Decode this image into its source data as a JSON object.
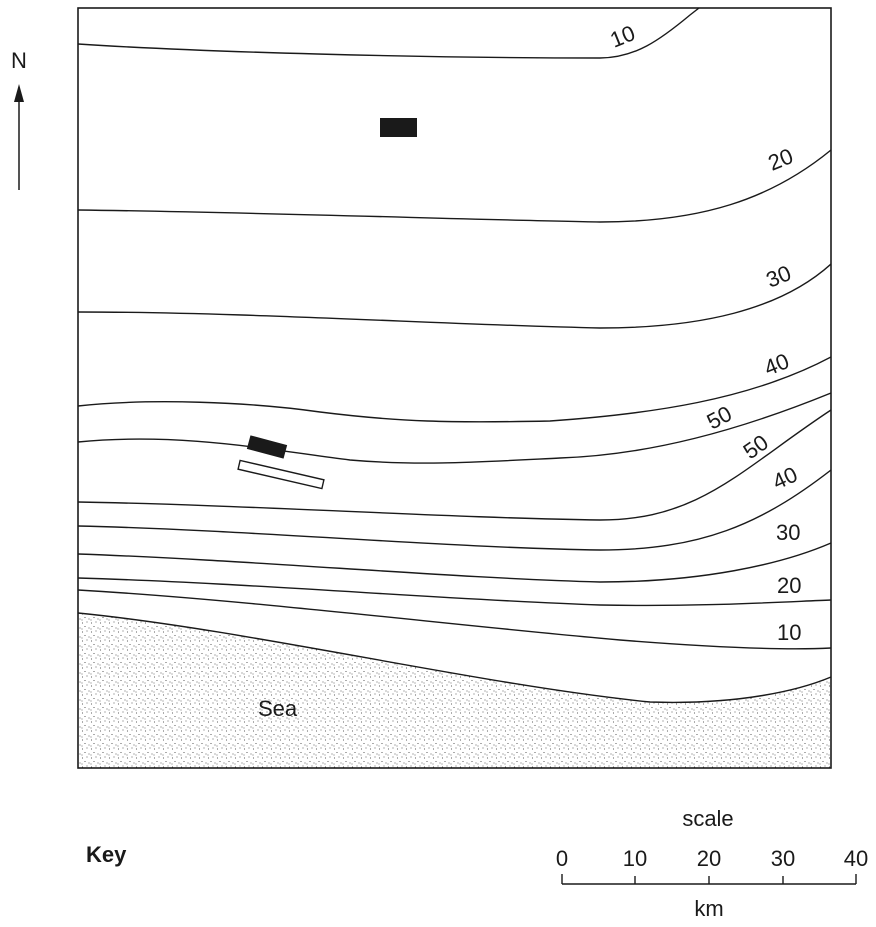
{
  "north_label": "N",
  "sea_label": "Sea",
  "key_label": "Key",
  "contours": {
    "north_10": "10",
    "north_20": "20",
    "north_30": "30",
    "north_40": "40",
    "north_50": "50",
    "south_50": "50",
    "south_40": "40",
    "south_30": "30",
    "south_20": "20",
    "south_10": "10"
  },
  "scale": {
    "title": "scale",
    "unit": "km",
    "ticks": [
      "0",
      "10",
      "20",
      "30",
      "40"
    ]
  },
  "colors": {
    "ink": "#1a1a1a",
    "sea_stipple": "#333333",
    "background": "#ffffff"
  }
}
